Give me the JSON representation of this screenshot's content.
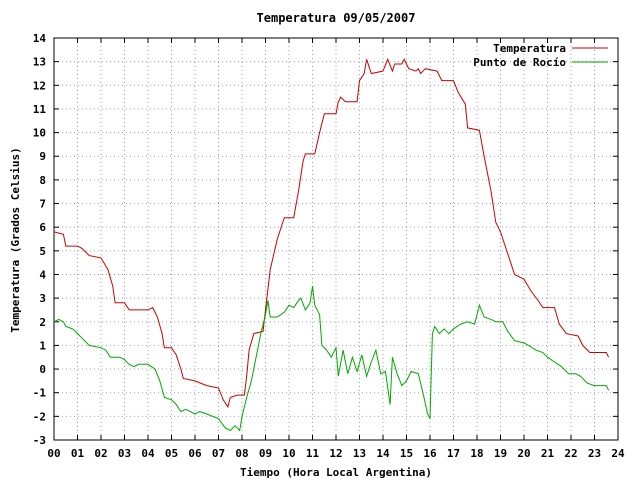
{
  "chart_data": {
    "type": "line",
    "title": "Temperatura 09/05/2007",
    "xlabel": "Tiempo (Hora Local Argentina)",
    "ylabel": "Temperatura (Grados Celsius)",
    "xlim": [
      0,
      24
    ],
    "ylim": [
      -3,
      14
    ],
    "x_ticks": [
      "00",
      "01",
      "02",
      "03",
      "04",
      "05",
      "06",
      "07",
      "08",
      "09",
      "10",
      "11",
      "12",
      "13",
      "14",
      "15",
      "16",
      "17",
      "18",
      "19",
      "20",
      "21",
      "22",
      "23",
      "24"
    ],
    "y_ticks": [
      "-3",
      "-2",
      "-1",
      "0",
      "1",
      "2",
      "3",
      "4",
      "5",
      "6",
      "7",
      "8",
      "9",
      "10",
      "11",
      "12",
      "13",
      "14"
    ],
    "grid": true,
    "legend_position": "top-right",
    "series": [
      {
        "name": "Temperatura",
        "color": "#cc0000",
        "points": [
          [
            0.0,
            5.8
          ],
          [
            0.4,
            5.7
          ],
          [
            0.5,
            5.2
          ],
          [
            1.0,
            5.2
          ],
          [
            1.2,
            5.1
          ],
          [
            1.5,
            4.8
          ],
          [
            2.0,
            4.7
          ],
          [
            2.3,
            4.2
          ],
          [
            2.5,
            3.5
          ],
          [
            2.6,
            2.8
          ],
          [
            3.0,
            2.8
          ],
          [
            3.2,
            2.5
          ],
          [
            3.5,
            2.5
          ],
          [
            4.0,
            2.5
          ],
          [
            4.2,
            2.6
          ],
          [
            4.4,
            2.2
          ],
          [
            4.6,
            1.5
          ],
          [
            4.7,
            0.9
          ],
          [
            5.0,
            0.9
          ],
          [
            5.2,
            0.6
          ],
          [
            5.4,
            0.0
          ],
          [
            5.5,
            -0.4
          ],
          [
            6.0,
            -0.5
          ],
          [
            6.5,
            -0.7
          ],
          [
            7.0,
            -0.8
          ],
          [
            7.2,
            -1.3
          ],
          [
            7.4,
            -1.6
          ],
          [
            7.5,
            -1.2
          ],
          [
            7.8,
            -1.1
          ],
          [
            8.1,
            -1.1
          ],
          [
            8.2,
            -0.3
          ],
          [
            8.3,
            0.8
          ],
          [
            8.5,
            1.5
          ],
          [
            8.9,
            1.6
          ],
          [
            9.0,
            2.5
          ],
          [
            9.2,
            4.2
          ],
          [
            9.5,
            5.5
          ],
          [
            9.8,
            6.4
          ],
          [
            10.2,
            6.4
          ],
          [
            10.4,
            7.5
          ],
          [
            10.6,
            8.8
          ],
          [
            10.7,
            9.1
          ],
          [
            11.1,
            9.1
          ],
          [
            11.3,
            10.0
          ],
          [
            11.5,
            10.8
          ],
          [
            12.0,
            10.8
          ],
          [
            12.1,
            11.3
          ],
          [
            12.2,
            11.5
          ],
          [
            12.4,
            11.3
          ],
          [
            12.9,
            11.3
          ],
          [
            13.0,
            12.2
          ],
          [
            13.2,
            12.5
          ],
          [
            13.3,
            13.1
          ],
          [
            13.5,
            12.5
          ],
          [
            14.0,
            12.6
          ],
          [
            14.2,
            13.1
          ],
          [
            14.4,
            12.6
          ],
          [
            14.5,
            12.9
          ],
          [
            14.8,
            12.9
          ],
          [
            14.9,
            13.1
          ],
          [
            15.1,
            12.7
          ],
          [
            15.4,
            12.6
          ],
          [
            15.5,
            12.7
          ],
          [
            15.6,
            12.5
          ],
          [
            15.8,
            12.7
          ],
          [
            16.3,
            12.6
          ],
          [
            16.5,
            12.2
          ],
          [
            17.0,
            12.2
          ],
          [
            17.2,
            11.7
          ],
          [
            17.5,
            11.2
          ],
          [
            17.6,
            10.2
          ],
          [
            18.1,
            10.1
          ],
          [
            18.3,
            9.0
          ],
          [
            18.6,
            7.5
          ],
          [
            18.8,
            6.2
          ],
          [
            19.0,
            5.8
          ],
          [
            19.4,
            4.6
          ],
          [
            19.6,
            4.0
          ],
          [
            20.0,
            3.8
          ],
          [
            20.3,
            3.3
          ],
          [
            20.6,
            2.9
          ],
          [
            20.8,
            2.6
          ],
          [
            21.3,
            2.6
          ],
          [
            21.5,
            1.9
          ],
          [
            21.8,
            1.5
          ],
          [
            22.3,
            1.4
          ],
          [
            22.5,
            1.0
          ],
          [
            22.8,
            0.7
          ],
          [
            23.5,
            0.7
          ],
          [
            23.6,
            0.5
          ]
        ]
      },
      {
        "name": "Punto de Rocío",
        "color": "#00aa00",
        "points": [
          [
            0.0,
            2.0
          ],
          [
            0.2,
            2.1
          ],
          [
            0.4,
            2.0
          ],
          [
            0.5,
            1.8
          ],
          [
            0.8,
            1.7
          ],
          [
            1.0,
            1.5
          ],
          [
            1.2,
            1.3
          ],
          [
            1.5,
            1.0
          ],
          [
            2.0,
            0.9
          ],
          [
            2.2,
            0.8
          ],
          [
            2.4,
            0.5
          ],
          [
            2.8,
            0.5
          ],
          [
            3.0,
            0.4
          ],
          [
            3.2,
            0.2
          ],
          [
            3.4,
            0.1
          ],
          [
            3.6,
            0.2
          ],
          [
            4.0,
            0.2
          ],
          [
            4.3,
            0.0
          ],
          [
            4.5,
            -0.5
          ],
          [
            4.7,
            -1.2
          ],
          [
            5.0,
            -1.3
          ],
          [
            5.2,
            -1.5
          ],
          [
            5.4,
            -1.8
          ],
          [
            5.6,
            -1.7
          ],
          [
            5.8,
            -1.8
          ],
          [
            6.0,
            -1.9
          ],
          [
            6.2,
            -1.8
          ],
          [
            6.5,
            -1.9
          ],
          [
            7.0,
            -2.1
          ],
          [
            7.3,
            -2.5
          ],
          [
            7.5,
            -2.6
          ],
          [
            7.7,
            -2.4
          ],
          [
            7.9,
            -2.6
          ],
          [
            8.0,
            -2.0
          ],
          [
            8.2,
            -1.2
          ],
          [
            8.4,
            -0.5
          ],
          [
            8.6,
            0.5
          ],
          [
            8.8,
            1.5
          ],
          [
            9.0,
            2.3
          ],
          [
            9.1,
            2.9
          ],
          [
            9.2,
            2.2
          ],
          [
            9.5,
            2.2
          ],
          [
            9.8,
            2.4
          ],
          [
            10.0,
            2.7
          ],
          [
            10.2,
            2.6
          ],
          [
            10.4,
            2.9
          ],
          [
            10.5,
            3.0
          ],
          [
            10.7,
            2.5
          ],
          [
            10.9,
            2.8
          ],
          [
            11.0,
            3.5
          ],
          [
            11.1,
            2.7
          ],
          [
            11.3,
            2.3
          ],
          [
            11.4,
            1.0
          ],
          [
            11.6,
            0.8
          ],
          [
            11.8,
            0.5
          ],
          [
            12.0,
            0.9
          ],
          [
            12.1,
            -0.3
          ],
          [
            12.3,
            0.8
          ],
          [
            12.5,
            -0.2
          ],
          [
            12.7,
            0.5
          ],
          [
            12.9,
            -0.1
          ],
          [
            13.1,
            0.6
          ],
          [
            13.3,
            -0.3
          ],
          [
            13.5,
            0.3
          ],
          [
            13.7,
            0.8
          ],
          [
            13.9,
            -0.2
          ],
          [
            14.1,
            -0.1
          ],
          [
            14.3,
            -1.5
          ],
          [
            14.4,
            0.5
          ],
          [
            14.6,
            -0.2
          ],
          [
            14.8,
            -0.7
          ],
          [
            15.0,
            -0.5
          ],
          [
            15.2,
            -0.1
          ],
          [
            15.5,
            -0.2
          ],
          [
            15.7,
            -1.0
          ],
          [
            15.9,
            -1.9
          ],
          [
            16.0,
            -2.1
          ],
          [
            16.1,
            1.5
          ],
          [
            16.2,
            1.8
          ],
          [
            16.4,
            1.5
          ],
          [
            16.6,
            1.7
          ],
          [
            16.8,
            1.5
          ],
          [
            17.0,
            1.7
          ],
          [
            17.3,
            1.9
          ],
          [
            17.6,
            2.0
          ],
          [
            17.9,
            1.9
          ],
          [
            18.0,
            2.3
          ],
          [
            18.1,
            2.7
          ],
          [
            18.3,
            2.2
          ],
          [
            18.6,
            2.1
          ],
          [
            18.8,
            2.0
          ],
          [
            19.1,
            2.0
          ],
          [
            19.3,
            1.6
          ],
          [
            19.6,
            1.2
          ],
          [
            20.0,
            1.1
          ],
          [
            20.2,
            1.0
          ],
          [
            20.5,
            0.8
          ],
          [
            20.8,
            0.7
          ],
          [
            21.0,
            0.5
          ],
          [
            21.3,
            0.3
          ],
          [
            21.6,
            0.1
          ],
          [
            21.9,
            -0.2
          ],
          [
            22.2,
            -0.2
          ],
          [
            22.4,
            -0.3
          ],
          [
            22.7,
            -0.6
          ],
          [
            23.0,
            -0.7
          ],
          [
            23.5,
            -0.7
          ],
          [
            23.6,
            -0.9
          ]
        ]
      }
    ]
  }
}
